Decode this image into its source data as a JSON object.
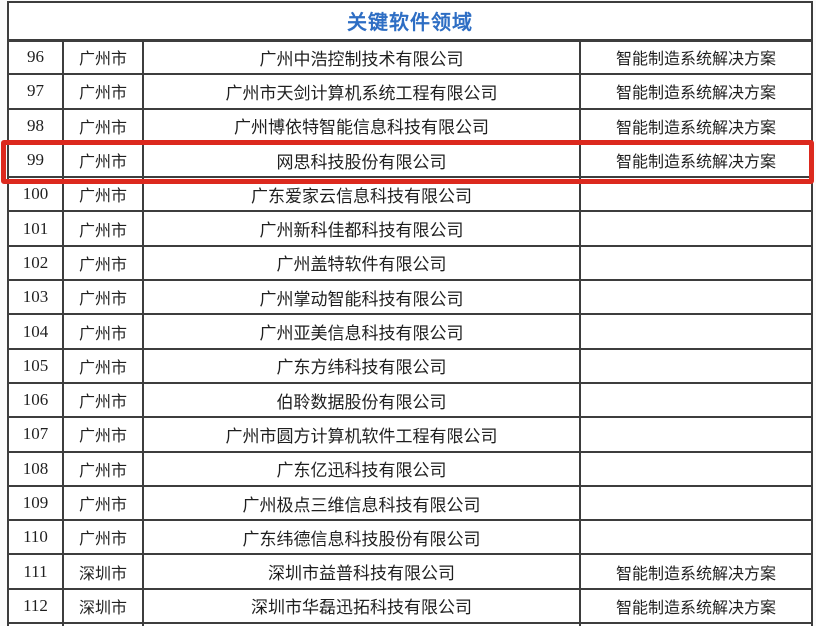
{
  "table": {
    "title": "关键软件领域",
    "rows": [
      {
        "no": "96",
        "city": "广州市",
        "company": "广州中浩控制技术有限公司",
        "solution": "智能制造系统解决方案",
        "highlighted": false
      },
      {
        "no": "97",
        "city": "广州市",
        "company": "广州市天剑计算机系统工程有限公司",
        "solution": "智能制造系统解决方案",
        "highlighted": false
      },
      {
        "no": "98",
        "city": "广州市",
        "company": "广州博依特智能信息科技有限公司",
        "solution": "智能制造系统解决方案",
        "highlighted": false
      },
      {
        "no": "99",
        "city": "广州市",
        "company": "网思科技股份有限公司",
        "solution": "智能制造系统解决方案",
        "highlighted": true
      },
      {
        "no": "100",
        "city": "广州市",
        "company": "广东爱家云信息科技有限公司",
        "solution": "",
        "highlighted": false
      },
      {
        "no": "101",
        "city": "广州市",
        "company": "广州新科佳都科技有限公司",
        "solution": "",
        "highlighted": false
      },
      {
        "no": "102",
        "city": "广州市",
        "company": "广州盖特软件有限公司",
        "solution": "",
        "highlighted": false
      },
      {
        "no": "103",
        "city": "广州市",
        "company": "广州掌动智能科技有限公司",
        "solution": "",
        "highlighted": false
      },
      {
        "no": "104",
        "city": "广州市",
        "company": "广州亚美信息科技有限公司",
        "solution": "",
        "highlighted": false
      },
      {
        "no": "105",
        "city": "广州市",
        "company": "广东方纬科技有限公司",
        "solution": "",
        "highlighted": false
      },
      {
        "no": "106",
        "city": "广州市",
        "company": "伯聆数据股份有限公司",
        "solution": "",
        "highlighted": false
      },
      {
        "no": "107",
        "city": "广州市",
        "company": "广州市圆方计算机软件工程有限公司",
        "solution": "",
        "highlighted": false
      },
      {
        "no": "108",
        "city": "广州市",
        "company": "广东亿迅科技有限公司",
        "solution": "",
        "highlighted": false
      },
      {
        "no": "109",
        "city": "广州市",
        "company": "广州极点三维信息科技有限公司",
        "solution": "",
        "highlighted": false
      },
      {
        "no": "110",
        "city": "广州市",
        "company": "广东纬德信息科技股份有限公司",
        "solution": "",
        "highlighted": false
      },
      {
        "no": "111",
        "city": "深圳市",
        "company": "深圳市益普科技有限公司",
        "solution": "智能制造系统解决方案",
        "highlighted": false
      },
      {
        "no": "112",
        "city": "深圳市",
        "company": "深圳市华磊迅拓科技有限公司",
        "solution": "智能制造系统解决方案",
        "highlighted": false
      }
    ],
    "highlighted_row_no": "99"
  },
  "colors": {
    "title_blue": "#2e6ec4",
    "highlight_red": "#dc291e",
    "grid_border": "#3d3d3d",
    "text": "#1f1f1f"
  }
}
